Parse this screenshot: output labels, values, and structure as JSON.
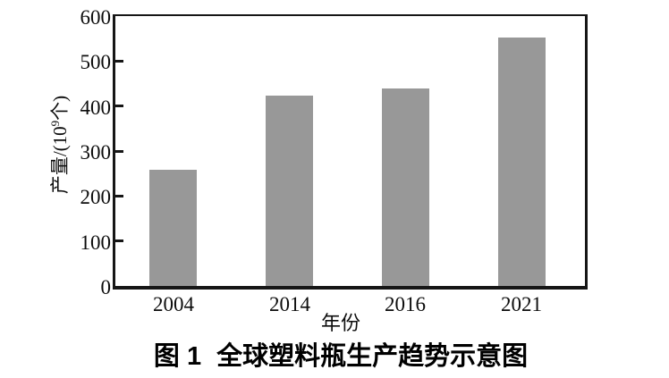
{
  "figure": {
    "caption_label": "图 1",
    "caption_title": "全球塑料瓶生产趋势示意图"
  },
  "chart_data": {
    "type": "bar",
    "title": "图 1 全球塑料瓶生产趋势示意图",
    "categories": [
      "2004",
      "2014",
      "2016",
      "2021"
    ],
    "values": [
      258,
      424,
      440,
      552
    ],
    "xlabel": "年份",
    "ylabel": "产量/(10⁹个)",
    "ylabel_parts": {
      "prefix": "产量/(10",
      "sup": "9",
      "suffix": "个)"
    },
    "ylim": [
      0,
      600
    ],
    "ytick_step": 100,
    "yticks": [
      0,
      100,
      200,
      300,
      400,
      500,
      600
    ],
    "bar_color": "#989898",
    "axis_color": "#161616",
    "grid": false,
    "legend": null
  }
}
